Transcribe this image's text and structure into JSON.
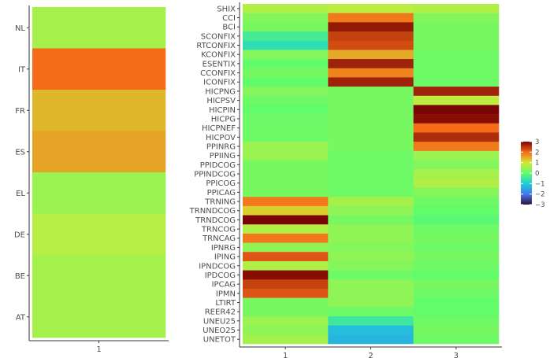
{
  "chart_data": [
    {
      "type": "heatmap",
      "title": "",
      "xlabel": "",
      "ylabel": "",
      "x_categories": [
        "1"
      ],
      "y_categories": [
        "NL",
        "IT",
        "FR",
        "ES",
        "EL",
        "DE",
        "BE",
        "AT"
      ],
      "values": [
        [
          0.6
        ],
        [
          2.0
        ],
        [
          1.4
        ],
        [
          1.55
        ],
        [
          0.5
        ],
        [
          0.75
        ],
        [
          0.6
        ],
        [
          0.6
        ]
      ]
    },
    {
      "type": "heatmap",
      "title": "",
      "xlabel": "",
      "ylabel": "",
      "x_categories": [
        "1",
        "2",
        "3"
      ],
      "y_categories": [
        "SHIX",
        "CCI",
        "BCI",
        "SCONFIX",
        "RTCONFIX",
        "KCONFIX",
        "ESENTIX",
        "CCONFIX",
        "ICONFIX",
        "HICPNG",
        "HICPSV",
        "HICPIN",
        "HICPG",
        "HICPNEF",
        "HICPOV",
        "PPINRG",
        "PPIING",
        "PPIDCOG",
        "PPINDCOG",
        "PPICOG",
        "PPICAG",
        "TRNING",
        "TRNNDCOG",
        "TRNDCOG",
        "TRNCOG",
        "TRNCAG",
        "IPNRG",
        "IPING",
        "IPNDCOG",
        "IPDCOG",
        "IPCAG",
        "IPMN",
        "LTIRT",
        "REER42",
        "UNEU25",
        "UNEO25",
        "UNETOT"
      ],
      "values": [
        [
          0.7,
          0.8,
          0.7
        ],
        [
          0.3,
          1.9,
          0.3
        ],
        [
          0.2,
          2.8,
          0.2
        ],
        [
          -0.4,
          2.4,
          0.2
        ],
        [
          -0.7,
          2.3,
          0.2
        ],
        [
          0.3,
          1.5,
          0.1
        ],
        [
          0.0,
          2.7,
          0.1
        ],
        [
          0.2,
          1.8,
          0.1
        ],
        [
          0.0,
          2.7,
          0.1
        ],
        [
          0.3,
          0.2,
          2.7
        ],
        [
          0.1,
          0.2,
          0.8
        ],
        [
          0.0,
          0.2,
          3.0
        ],
        [
          0.1,
          0.2,
          2.9
        ],
        [
          0.1,
          0.2,
          2.0
        ],
        [
          0.1,
          0.2,
          2.6
        ],
        [
          0.5,
          0.2,
          1.9
        ],
        [
          0.5,
          0.1,
          0.5
        ],
        [
          0.2,
          0.1,
          0.3
        ],
        [
          0.2,
          0.1,
          0.6
        ],
        [
          0.2,
          0.1,
          0.7
        ],
        [
          0.2,
          0.1,
          0.3
        ],
        [
          1.9,
          0.6,
          0.1
        ],
        [
          1.2,
          0.4,
          0.0
        ],
        [
          3.0,
          0.2,
          -0.1
        ],
        [
          0.7,
          0.4,
          0.1
        ],
        [
          1.9,
          0.4,
          0.2
        ],
        [
          0.4,
          0.3,
          0.1
        ],
        [
          2.2,
          0.4,
          0.2
        ],
        [
          0.7,
          0.3,
          0.1
        ],
        [
          2.9,
          0.1,
          0.0
        ],
        [
          2.4,
          0.4,
          0.2
        ],
        [
          2.2,
          0.4,
          0.1
        ],
        [
          0.2,
          0.4,
          0.0
        ],
        [
          0.2,
          0.1,
          0.0
        ],
        [
          0.5,
          -0.5,
          0.1
        ],
        [
          0.4,
          -1.2,
          0.2
        ],
        [
          0.6,
          -1.3,
          0.1
        ]
      ]
    }
  ],
  "legend": {
    "ticks": [
      "3",
      "2",
      "1",
      "0",
      "−1",
      "−2",
      "−3"
    ],
    "range": [
      -3,
      3
    ]
  }
}
